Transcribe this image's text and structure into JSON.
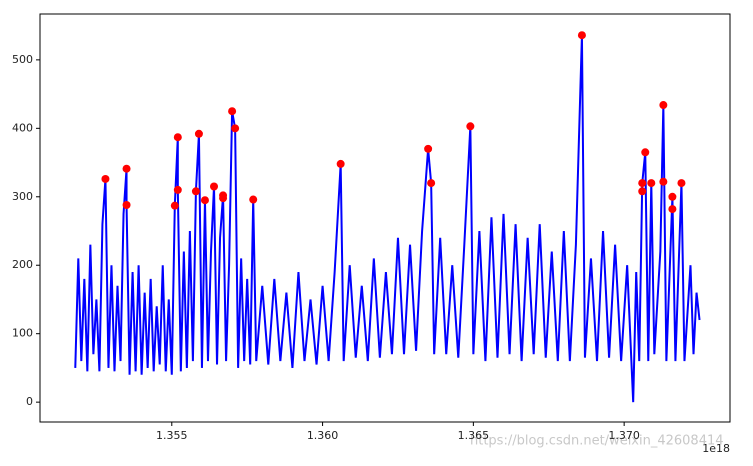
{
  "chart_data": {
    "type": "line",
    "xlim": [
      1.35063,
      1.37351
    ],
    "ylim": [
      -29,
      567
    ],
    "xticks": [
      1.355,
      {
        "value": 1.36,
        "label": "1.360"
      },
      1.365,
      {
        "value": 1.37,
        "label": "1.370"
      }
    ],
    "yticks": [
      0,
      100,
      200,
      300,
      400,
      500
    ],
    "x_offset_label": "1e18",
    "watermark": "https://blog.csdn.net/weixin_42608414",
    "series": [
      {
        "type": "line",
        "color": "#0000ff",
        "x": [
          1.3518,
          1.3519,
          1.352,
          1.3521,
          1.3522,
          1.3523,
          1.3524,
          1.3525,
          1.3526,
          1.3527,
          1.3528,
          1.3529,
          1.353,
          1.3531,
          1.3532,
          1.3533,
          1.3534,
          1.3535,
          1.3535,
          1.3536,
          1.3537,
          1.3538,
          1.3539,
          1.354,
          1.3541,
          1.3542,
          1.3543,
          1.3544,
          1.3545,
          1.3546,
          1.3547,
          1.3548,
          1.3549,
          1.355,
          1.3551,
          1.3552,
          1.3552,
          1.3553,
          1.3554,
          1.3555,
          1.3556,
          1.3557,
          1.3558,
          1.3559,
          1.356,
          1.3561,
          1.3562,
          1.3563,
          1.3564,
          1.3565,
          1.3566,
          1.3567,
          1.3568,
          1.3569,
          1.357,
          1.3571,
          1.3572,
          1.3573,
          1.3574,
          1.3575,
          1.3576,
          1.3577,
          1.3578,
          1.358,
          1.3582,
          1.3584,
          1.3586,
          1.3588,
          1.359,
          1.3592,
          1.3594,
          1.3596,
          1.3598,
          1.36,
          1.3602,
          1.3604,
          1.3606,
          1.3607,
          1.3609,
          1.3611,
          1.3613,
          1.3615,
          1.3617,
          1.3619,
          1.3621,
          1.3623,
          1.3625,
          1.3627,
          1.3629,
          1.3631,
          1.3633,
          1.3635,
          1.3636,
          1.3637,
          1.3639,
          1.3641,
          1.3643,
          1.3645,
          1.3647,
          1.3649,
          1.365,
          1.3652,
          1.3654,
          1.3656,
          1.3658,
          1.366,
          1.3662,
          1.3664,
          1.3666,
          1.3668,
          1.367,
          1.3672,
          1.3674,
          1.3676,
          1.3678,
          1.368,
          1.3682,
          1.3684,
          1.3686,
          1.3687,
          1.3689,
          1.3691,
          1.3693,
          1.3695,
          1.3697,
          1.3699,
          1.3701,
          1.3703,
          1.3704,
          1.3705,
          1.3706,
          1.3707,
          1.3708,
          1.3709,
          1.371,
          1.3712,
          1.3713,
          1.3714,
          1.3716,
          1.3717,
          1.3719,
          1.372,
          1.3722,
          1.3723,
          1.3724,
          1.3725
        ],
        "values": [
          50,
          210,
          60,
          180,
          45,
          230,
          70,
          150,
          45,
          260,
          326,
          50,
          200,
          45,
          170,
          60,
          275,
          341,
          288,
          40,
          190,
          45,
          200,
          40,
          160,
          50,
          180,
          45,
          140,
          55,
          200,
          45,
          150,
          40,
          287,
          387,
          310,
          45,
          220,
          50,
          250,
          60,
          308,
          392,
          50,
          295,
          60,
          220,
          315,
          55,
          240,
          302,
          60,
          200,
          425,
          400,
          50,
          210,
          60,
          180,
          55,
          296,
          60,
          170,
          55,
          180,
          60,
          160,
          50,
          190,
          60,
          150,
          55,
          170,
          60,
          190,
          348,
          60,
          200,
          65,
          170,
          60,
          210,
          65,
          190,
          70,
          240,
          70,
          230,
          75,
          250,
          370,
          320,
          70,
          240,
          70,
          200,
          65,
          230,
          403,
          70,
          250,
          60,
          270,
          65,
          275,
          70,
          260,
          60,
          240,
          70,
          260,
          65,
          220,
          60,
          250,
          60,
          230,
          536,
          65,
          210,
          60,
          250,
          65,
          230,
          60,
          200,
          0,
          190,
          60,
          320,
          365,
          60,
          320,
          70,
          220,
          434,
          60,
          300,
          60,
          320,
          60,
          200,
          70,
          160,
          120
        ]
      },
      {
        "type": "scatter",
        "color": "#ff0000",
        "x": [
          1.3528,
          1.3535,
          1.3535,
          1.3551,
          1.3552,
          1.3552,
          1.3558,
          1.3559,
          1.3561,
          1.3564,
          1.3567,
          1.3567,
          1.357,
          1.3571,
          1.3577,
          1.3606,
          1.3635,
          1.3636,
          1.3649,
          1.3686,
          1.3706,
          1.3706,
          1.3707,
          1.3709,
          1.3713,
          1.3713,
          1.3716,
          1.3716,
          1.3719
        ],
        "values": [
          326,
          341,
          288,
          287,
          310,
          387,
          308,
          392,
          295,
          315,
          302,
          298,
          425,
          400,
          296,
          348,
          370,
          320,
          403,
          536,
          308,
          320,
          365,
          320,
          322,
          434,
          282,
          300,
          320
        ]
      }
    ]
  }
}
